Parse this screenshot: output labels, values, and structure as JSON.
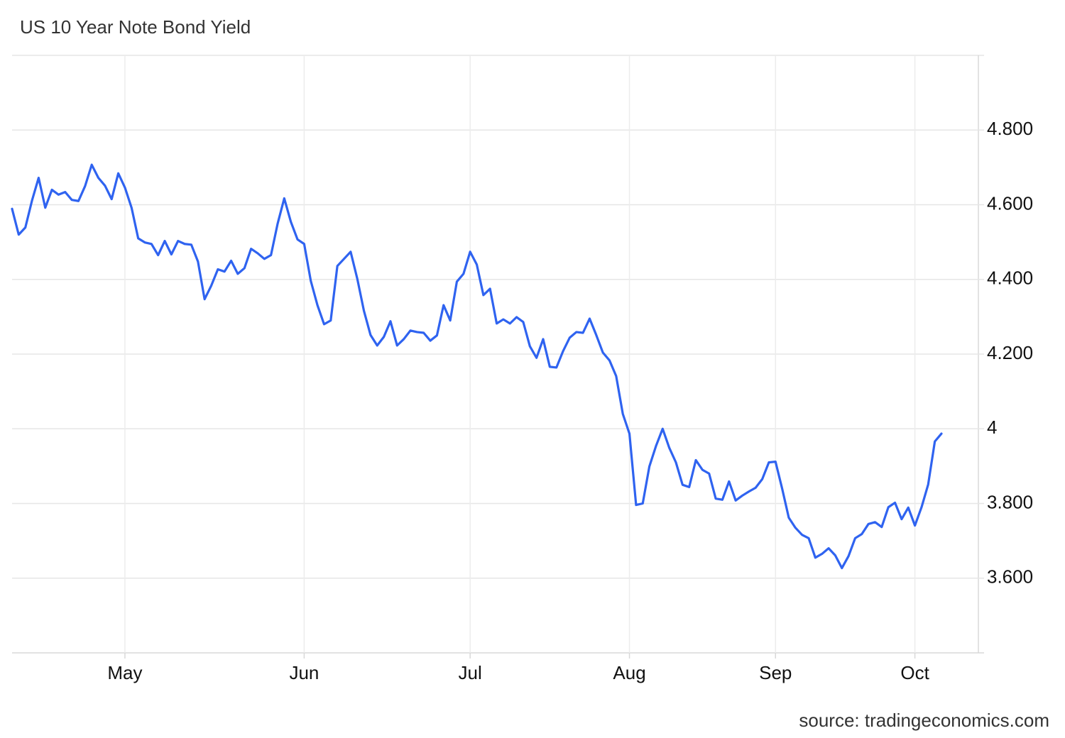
{
  "chart_data": {
    "type": "line",
    "title": "US 10 Year Note Bond Yield",
    "source": "source: tradingeconomics.com",
    "color": "#2f63f0",
    "grid": true,
    "ylim": [
      3.4,
      5.0
    ],
    "yticks": [
      {
        "value": 3.6,
        "label": "3.600"
      },
      {
        "value": 3.8,
        "label": "3.800"
      },
      4,
      {
        "value": 4.2,
        "label": "4.200"
      },
      {
        "value": 4.4,
        "label": "4.400"
      },
      {
        "value": 4.6,
        "label": "4.600"
      },
      {
        "value": 4.8,
        "label": "4.800"
      }
    ],
    "categories": [
      null,
      null,
      null,
      null,
      null,
      null,
      null,
      null,
      null,
      null,
      null,
      null,
      null,
      null,
      null,
      null,
      null,
      "May",
      null,
      null,
      null,
      null,
      null,
      null,
      null,
      null,
      null,
      null,
      null,
      null,
      null,
      null,
      null,
      null,
      null,
      null,
      null,
      null,
      null,
      null,
      null,
      null,
      null,
      null,
      "Jun",
      null,
      null,
      null,
      null,
      null,
      null,
      null,
      null,
      null,
      null,
      null,
      null,
      null,
      null,
      null,
      null,
      null,
      null,
      null,
      null,
      null,
      null,
      null,
      null,
      "Jul",
      null,
      null,
      null,
      null,
      null,
      null,
      null,
      null,
      null,
      null,
      null,
      null,
      null,
      null,
      null,
      null,
      null,
      null,
      null,
      null,
      null,
      null,
      null,
      "Aug",
      null,
      null,
      null,
      null,
      null,
      null,
      null,
      null,
      null,
      null,
      null,
      null,
      null,
      null,
      null,
      null,
      null,
      null,
      null,
      null,
      null,
      "Sep",
      null,
      null,
      null,
      null,
      null,
      null,
      null,
      null,
      null,
      null,
      null,
      null,
      null,
      null,
      null,
      null,
      null,
      null,
      null,
      null,
      "Oct",
      null,
      null,
      null,
      null
    ],
    "values": [
      4.589,
      4.52,
      4.539,
      4.611,
      4.672,
      4.592,
      4.64,
      4.627,
      4.634,
      4.613,
      4.61,
      4.65,
      4.707,
      4.672,
      4.651,
      4.615,
      4.684,
      4.646,
      4.592,
      4.51,
      4.499,
      4.495,
      4.465,
      4.503,
      4.467,
      4.503,
      4.495,
      4.493,
      4.448,
      4.347,
      4.383,
      4.427,
      4.421,
      4.45,
      4.415,
      4.43,
      4.482,
      4.47,
      4.455,
      4.465,
      4.549,
      4.617,
      4.554,
      4.507,
      4.495,
      4.396,
      4.331,
      4.28,
      4.29,
      4.436,
      4.455,
      4.474,
      4.402,
      4.316,
      4.251,
      4.223,
      4.246,
      4.288,
      4.223,
      4.24,
      4.263,
      4.259,
      4.257,
      4.236,
      4.25,
      4.331,
      4.29,
      4.394,
      4.415,
      4.474,
      4.44,
      4.358,
      4.375,
      4.282,
      4.293,
      4.282,
      4.299,
      4.286,
      4.221,
      4.19,
      4.24,
      4.166,
      4.164,
      4.208,
      4.244,
      4.259,
      4.257,
      4.295,
      4.251,
      4.204,
      4.183,
      4.141,
      4.04,
      3.987,
      3.796,
      3.8,
      3.899,
      3.954,
      4.0,
      3.949,
      3.91,
      3.85,
      3.844,
      3.916,
      3.89,
      3.88,
      3.813,
      3.81,
      3.859,
      3.808,
      3.821,
      3.832,
      3.842,
      3.865,
      3.91,
      3.912,
      3.84,
      3.762,
      3.735,
      3.716,
      3.707,
      3.655,
      3.665,
      3.68,
      3.661,
      3.627,
      3.659,
      3.707,
      3.718,
      3.745,
      3.75,
      3.737,
      3.79,
      3.802,
      3.758,
      3.789,
      3.741,
      3.79,
      3.851,
      3.966,
      3.987
    ]
  }
}
